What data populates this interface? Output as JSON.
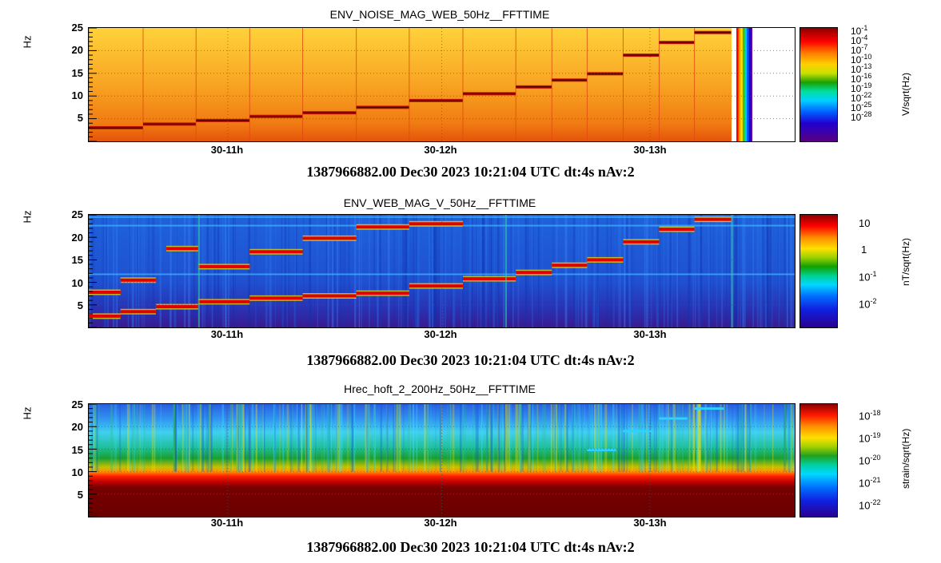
{
  "chart_data": [
    {
      "type": "heatmap",
      "title": "ENV_NOISE_MAG_WEB_50Hz__FFTTIME",
      "ylabel": "Hz",
      "yticks": [
        "25",
        "20",
        "15",
        "10",
        "5"
      ],
      "ylim": [
        0,
        25
      ],
      "xticks": [
        "30-11h",
        "30-12h",
        "30-13h"
      ],
      "colorbar_label": "V/sqrt(Hz)",
      "colorbar_ticks": [
        "10^-1",
        "10^-4",
        "10^-7",
        "10^-10",
        "10^-13",
        "10^-16",
        "10^-19",
        "10^-22",
        "10^-25",
        "10^-28"
      ],
      "tone_steps": [
        {
          "start": 0,
          "end": 0.077,
          "freq": 3.0
        },
        {
          "start": 0.077,
          "end": 0.152,
          "freq": 3.8
        },
        {
          "start": 0.152,
          "end": 0.228,
          "freq": 4.6
        },
        {
          "start": 0.228,
          "end": 0.303,
          "freq": 5.5
        },
        {
          "start": 0.303,
          "end": 0.379,
          "freq": 6.3
        },
        {
          "start": 0.379,
          "end": 0.454,
          "freq": 7.5
        },
        {
          "start": 0.454,
          "end": 0.53,
          "freq": 9.0
        },
        {
          "start": 0.53,
          "end": 0.605,
          "freq": 10.5
        },
        {
          "start": 0.605,
          "end": 0.656,
          "freq": 12.0
        },
        {
          "start": 0.656,
          "end": 0.706,
          "freq": 13.5
        },
        {
          "start": 0.706,
          "end": 0.757,
          "freq": 14.9
        },
        {
          "start": 0.757,
          "end": 0.808,
          "freq": 19.0
        },
        {
          "start": 0.808,
          "end": 0.858,
          "freq": 21.8
        },
        {
          "start": 0.858,
          "end": 0.91,
          "freq": 24.0
        }
      ],
      "data_end_fraction": 0.94,
      "footer": "1387966882.00 Dec30 2023 10:21:04 UTC dt:4s nAv:2"
    },
    {
      "type": "heatmap",
      "title": "ENV_WEB_MAG_V_50Hz__FFTTIME",
      "ylabel": "Hz",
      "yticks": [
        "25",
        "20",
        "15",
        "10",
        "5"
      ],
      "ylim": [
        0,
        25
      ],
      "xticks": [
        "30-11h",
        "30-12h",
        "30-13h"
      ],
      "colorbar_label": "nT/sqrt(Hz)",
      "colorbar_ticks": [
        "10",
        "1",
        "10^-1",
        "10^-2"
      ],
      "tone_steps": [
        {
          "start": 0.0,
          "end": 0.045,
          "freq": 7.8
        },
        {
          "start": 0.0,
          "end": 0.045,
          "freq": 2.5
        },
        {
          "start": 0.045,
          "end": 0.095,
          "freq": 3.5
        },
        {
          "start": 0.045,
          "end": 0.095,
          "freq": 10.5
        },
        {
          "start": 0.095,
          "end": 0.155,
          "freq": 4.6
        },
        {
          "start": 0.11,
          "end": 0.155,
          "freq": 17.5
        },
        {
          "start": 0.155,
          "end": 0.228,
          "freq": 5.7
        },
        {
          "start": 0.155,
          "end": 0.228,
          "freq": 13.5
        },
        {
          "start": 0.228,
          "end": 0.303,
          "freq": 6.5
        },
        {
          "start": 0.228,
          "end": 0.303,
          "freq": 16.8
        },
        {
          "start": 0.303,
          "end": 0.379,
          "freq": 7.0
        },
        {
          "start": 0.303,
          "end": 0.379,
          "freq": 19.8
        },
        {
          "start": 0.379,
          "end": 0.454,
          "freq": 7.6
        },
        {
          "start": 0.379,
          "end": 0.454,
          "freq": 22.3
        },
        {
          "start": 0.454,
          "end": 0.53,
          "freq": 9.2
        },
        {
          "start": 0.454,
          "end": 0.53,
          "freq": 23.0
        },
        {
          "start": 0.53,
          "end": 0.605,
          "freq": 10.8
        },
        {
          "start": 0.605,
          "end": 0.656,
          "freq": 12.2
        },
        {
          "start": 0.656,
          "end": 0.706,
          "freq": 13.8
        },
        {
          "start": 0.706,
          "end": 0.757,
          "freq": 15.0
        },
        {
          "start": 0.757,
          "end": 0.808,
          "freq": 19.0
        },
        {
          "start": 0.808,
          "end": 0.858,
          "freq": 21.8
        },
        {
          "start": 0.858,
          "end": 0.91,
          "freq": 24.0
        }
      ],
      "footer": "1387966882.00 Dec30 2023 10:21:04 UTC dt:4s nAv:2"
    },
    {
      "type": "heatmap",
      "title": "Hrec_hoft_2_200Hz_50Hz__FFTTIME",
      "ylabel": "Hz",
      "yticks": [
        "25",
        "20",
        "15",
        "10",
        "5"
      ],
      "ylim": [
        0,
        25
      ],
      "xticks": [
        "30-11h",
        "30-12h",
        "30-13h"
      ],
      "colorbar_label": "strain/sqrt(Hz)",
      "colorbar_ticks": [
        "10^-18",
        "10^-19",
        "10^-20",
        "10^-21",
        "10^-22"
      ],
      "tone_steps": [
        {
          "start": 0.706,
          "end": 0.757,
          "freq": 14.8
        },
        {
          "start": 0.757,
          "end": 0.808,
          "freq": 19.0
        },
        {
          "start": 0.808,
          "end": 0.858,
          "freq": 21.8
        },
        {
          "start": 0.858,
          "end": 0.91,
          "freq": 24.0
        }
      ],
      "footer": "1387966882.00 Dec30 2023 10:21:04 UTC dt:4s nAv:2"
    }
  ],
  "colors": {
    "panel1_background": "#f7a21a",
    "panel2_background": "#1a49c9",
    "panel3_background": "#6d0000",
    "tone_line": "#d00000"
  }
}
